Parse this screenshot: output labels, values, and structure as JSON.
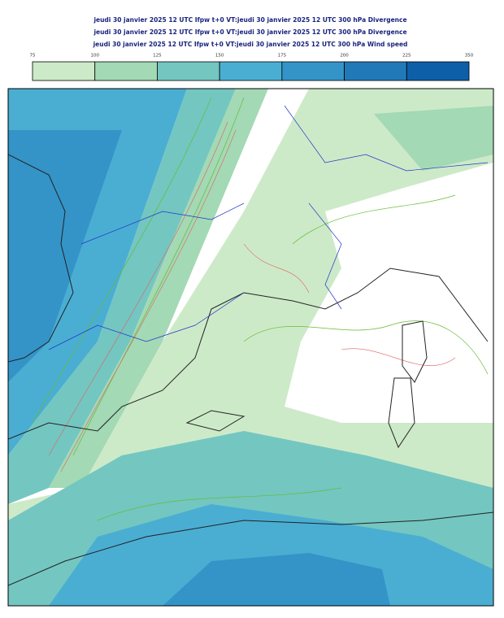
{
  "header": {
    "lines": [
      "jeudi 30 janvier 2025 12 UTC Ifpw t+0 VT:jeudi 30 janvier 2025 12 UTC 300 hPa  Divergence",
      "jeudi 30 janvier 2025 12 UTC Ifpw t+0 VT:jeudi 30 janvier 2025 12 UTC 300 hPa  Divergence",
      "jeudi 30 janvier 2025 12 UTC Ifpw t+0 VT:jeudi 30 janvier 2025 12 UTC 300 hPa  Wind speed"
    ]
  },
  "colorbar": {
    "ticks": [
      75,
      100,
      125,
      150,
      175,
      200,
      225,
      350
    ],
    "colors": [
      "#cdeac8",
      "#a3d9b4",
      "#74c6c1",
      "#4aaed2",
      "#3494c8",
      "#2179b8",
      "#0d5fa8"
    ]
  }
}
